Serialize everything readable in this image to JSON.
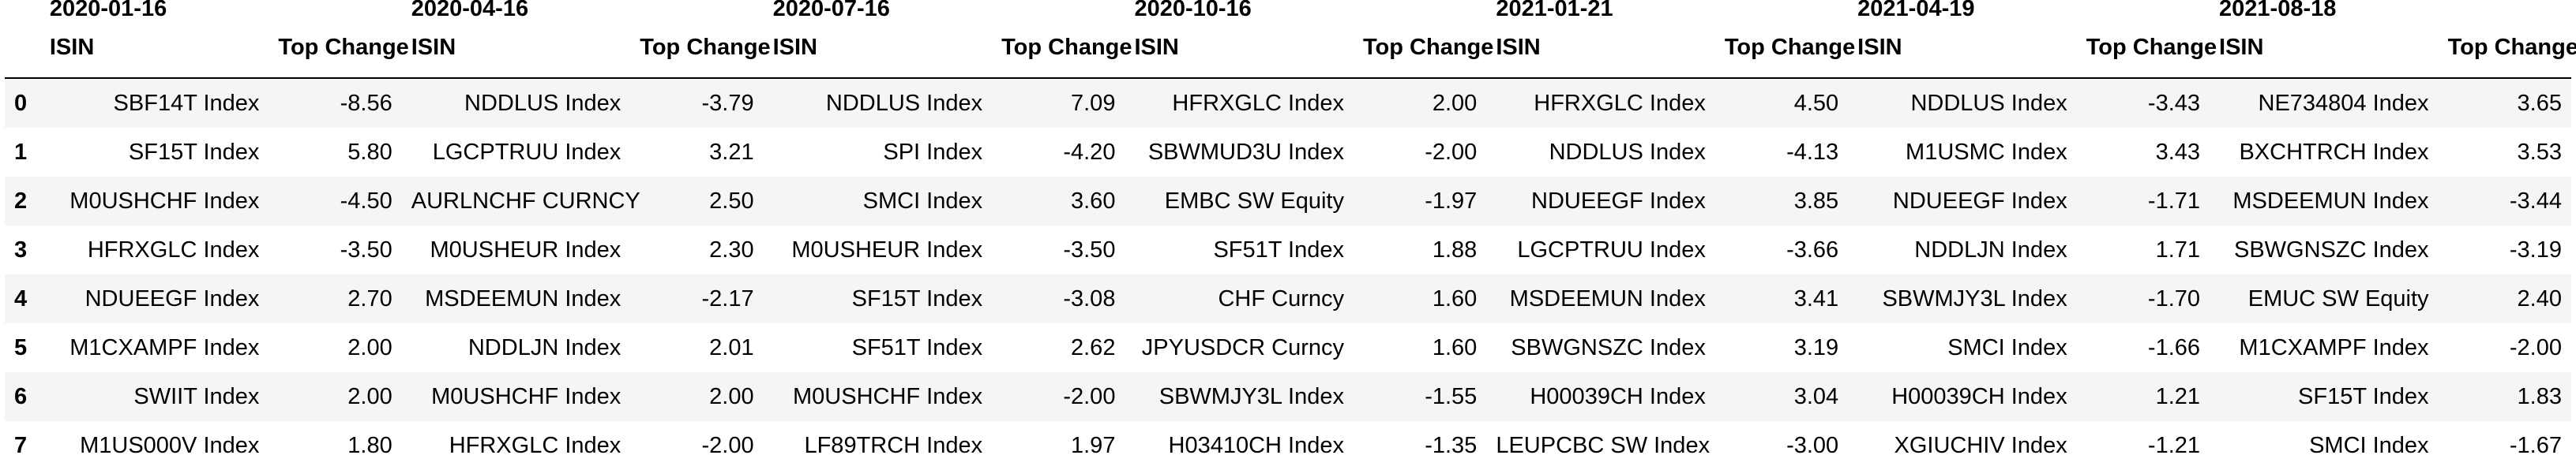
{
  "groups": [
    "2020-01-16",
    "2020-04-16",
    "2020-07-16",
    "2020-10-16",
    "2021-01-21",
    "2021-04-19",
    "2021-08-18"
  ],
  "column_headers": {
    "isin": "ISIN",
    "change": "Top Change"
  },
  "rows": [
    {
      "index": "0",
      "cells": [
        [
          "SBF14T Index",
          "-8.56"
        ],
        [
          "NDDLUS Index",
          "-3.79"
        ],
        [
          "NDDLUS Index",
          "7.09"
        ],
        [
          "HFRXGLC Index",
          "2.00"
        ],
        [
          "HFRXGLC Index",
          "4.50"
        ],
        [
          "NDDLUS Index",
          "-3.43"
        ],
        [
          "NE734804 Index",
          "3.65"
        ]
      ]
    },
    {
      "index": "1",
      "cells": [
        [
          "SF15T Index",
          "5.80"
        ],
        [
          "LGCPTRUU Index",
          "3.21"
        ],
        [
          "SPI Index",
          "-4.20"
        ],
        [
          "SBWMUD3U Index",
          "-2.00"
        ],
        [
          "NDDLUS Index",
          "-4.13"
        ],
        [
          "M1USMC Index",
          "3.43"
        ],
        [
          "BXCHTRCH Index",
          "3.53"
        ]
      ]
    },
    {
      "index": "2",
      "cells": [
        [
          "M0USHCHF Index",
          "-4.50"
        ],
        [
          "AURLNCHF CURNCY",
          "2.50"
        ],
        [
          "SMCI Index",
          "3.60"
        ],
        [
          "EMBC SW Equity",
          "-1.97"
        ],
        [
          "NDUEEGF Index",
          "3.85"
        ],
        [
          "NDUEEGF Index",
          "-1.71"
        ],
        [
          "MSDEEMUN Index",
          "-3.44"
        ]
      ]
    },
    {
      "index": "3",
      "cells": [
        [
          "HFRXGLC Index",
          "-3.50"
        ],
        [
          "M0USHEUR Index",
          "2.30"
        ],
        [
          "M0USHEUR Index",
          "-3.50"
        ],
        [
          "SF51T Index",
          "1.88"
        ],
        [
          "LGCPTRUU Index",
          "-3.66"
        ],
        [
          "NDDLJN Index",
          "1.71"
        ],
        [
          "SBWGNSZC Index",
          "-3.19"
        ]
      ]
    },
    {
      "index": "4",
      "cells": [
        [
          "NDUEEGF Index",
          "2.70"
        ],
        [
          "MSDEEMUN Index",
          "-2.17"
        ],
        [
          "SF15T Index",
          "-3.08"
        ],
        [
          "CHF Curncy",
          "1.60"
        ],
        [
          "MSDEEMUN Index",
          "3.41"
        ],
        [
          "SBWMJY3L Index",
          "-1.70"
        ],
        [
          "EMUC SW Equity",
          "2.40"
        ]
      ]
    },
    {
      "index": "5",
      "cells": [
        [
          "M1CXAMPF Index",
          "2.00"
        ],
        [
          "NDDLJN Index",
          "2.01"
        ],
        [
          "SF51T Index",
          "2.62"
        ],
        [
          "JPYUSDCR Curncy",
          "1.60"
        ],
        [
          "SBWGNSZC Index",
          "3.19"
        ],
        [
          "SMCI Index",
          "-1.66"
        ],
        [
          "M1CXAMPF Index",
          "-2.00"
        ]
      ]
    },
    {
      "index": "6",
      "cells": [
        [
          "SWIIT Index",
          "2.00"
        ],
        [
          "M0USHCHF Index",
          "2.00"
        ],
        [
          "M0USHCHF Index",
          "-2.00"
        ],
        [
          "SBWMJY3L Index",
          "-1.55"
        ],
        [
          "H00039CH Index",
          "3.04"
        ],
        [
          "H00039CH Index",
          "1.21"
        ],
        [
          "SF15T Index",
          "1.83"
        ]
      ]
    },
    {
      "index": "7",
      "cells": [
        [
          "M1US000V Index",
          "1.80"
        ],
        [
          "HFRXGLC Index",
          "-2.00"
        ],
        [
          "LF89TRCH Index",
          "1.97"
        ],
        [
          "H03410CH Index",
          "-1.35"
        ],
        [
          "LEUPCBC SW Index",
          "-3.00"
        ],
        [
          "XGIUCHIV Index",
          "-1.21"
        ],
        [
          "SMCI Index",
          "-1.67"
        ]
      ]
    }
  ]
}
